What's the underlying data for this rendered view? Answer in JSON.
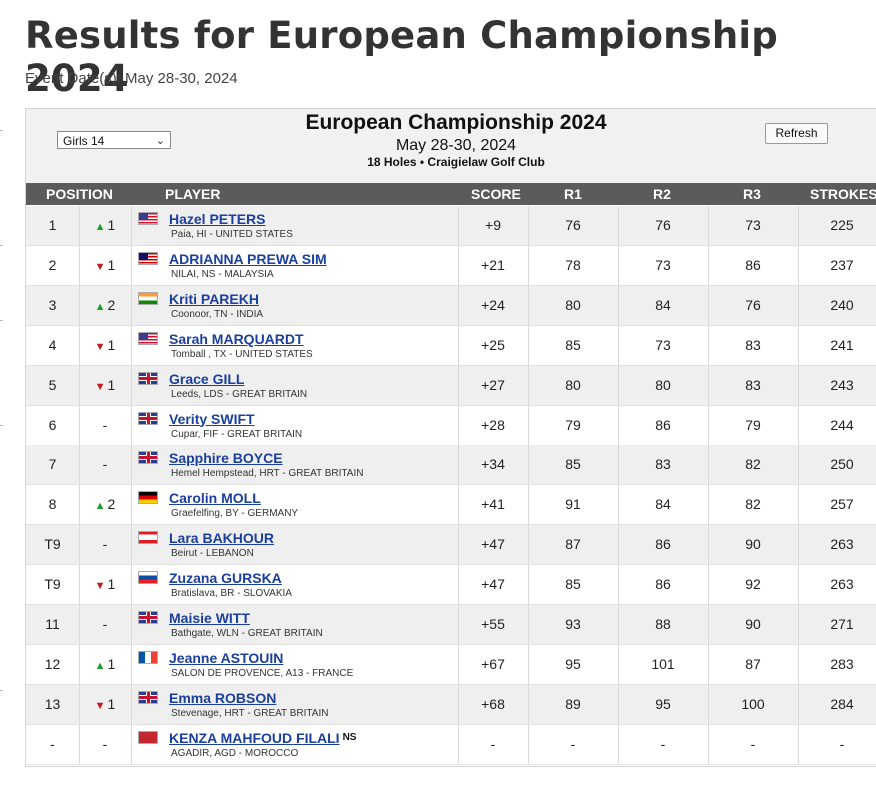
{
  "page": {
    "title": "Results for European Championship 2024",
    "event_date": "Event Date(s): May 28-30, 2024"
  },
  "board": {
    "division": "Girls 14",
    "title": "European Championship 2024",
    "dates": "May 28-30, 2024",
    "course": "18 Holes • Craigielaw Golf Club",
    "refresh_label": "Refresh"
  },
  "columns": {
    "position": "POSITION",
    "player": "PLAYER",
    "score": "SCORE",
    "r1": "R1",
    "r2": "R2",
    "r3": "R3",
    "strokes": "STROKES"
  },
  "rows": [
    {
      "pos": "1",
      "arrow": "▲",
      "move": "1",
      "dir": "up",
      "flag": "us",
      "name": "Hazel PETERS",
      "loc": "Paia, HI - UNITED STATES",
      "score": "+9",
      "r1": "76",
      "r2": "76",
      "r3": "73",
      "strokes": "225"
    },
    {
      "pos": "2",
      "arrow": "▼",
      "move": "1",
      "dir": "down",
      "flag": "my",
      "name": "ADRIANNA PREWA SIM",
      "loc": "NILAI, NS - MALAYSIA",
      "score": "+21",
      "r1": "78",
      "r2": "73",
      "r3": "86",
      "strokes": "237"
    },
    {
      "pos": "3",
      "arrow": "▲",
      "move": "2",
      "dir": "up",
      "flag": "in",
      "name": "Kriti PAREKH",
      "loc": "Coonoor, TN - INDIA",
      "score": "+24",
      "r1": "80",
      "r2": "84",
      "r3": "76",
      "strokes": "240"
    },
    {
      "pos": "4",
      "arrow": "▼",
      "move": "1",
      "dir": "down",
      "flag": "us",
      "name": "Sarah MARQUARDT",
      "loc": "Tomball , TX - UNITED STATES",
      "score": "+25",
      "r1": "85",
      "r2": "73",
      "r3": "83",
      "strokes": "241"
    },
    {
      "pos": "5",
      "arrow": "▼",
      "move": "1",
      "dir": "down",
      "flag": "gb",
      "name": "Grace GILL",
      "loc": "Leeds, LDS - GREAT BRITAIN",
      "score": "+27",
      "r1": "80",
      "r2": "80",
      "r3": "83",
      "strokes": "243"
    },
    {
      "pos": "6",
      "arrow": "",
      "move": "-",
      "dir": "none",
      "flag": "gb",
      "name": "Verity SWIFT",
      "loc": "Cupar, FIF - GREAT BRITAIN",
      "score": "+28",
      "r1": "79",
      "r2": "86",
      "r3": "79",
      "strokes": "244"
    },
    {
      "pos": "7",
      "arrow": "",
      "move": "-",
      "dir": "none",
      "flag": "gb",
      "name": "Sapphire BOYCE",
      "loc": "Hemel Hempstead, HRT - GREAT BRITAIN",
      "score": "+34",
      "r1": "85",
      "r2": "83",
      "r3": "82",
      "strokes": "250"
    },
    {
      "pos": "8",
      "arrow": "▲",
      "move": "2",
      "dir": "up",
      "flag": "de",
      "name": "Carolin MOLL",
      "loc": "Graefelfing, BY - GERMANY",
      "score": "+41",
      "r1": "91",
      "r2": "84",
      "r3": "82",
      "strokes": "257"
    },
    {
      "pos": "T9",
      "arrow": "",
      "move": "-",
      "dir": "none",
      "flag": "lb",
      "name": "Lara BAKHOUR",
      "loc": "Beirut - LEBANON",
      "score": "+47",
      "r1": "87",
      "r2": "86",
      "r3": "90",
      "strokes": "263"
    },
    {
      "pos": "T9",
      "arrow": "▼",
      "move": "1",
      "dir": "down",
      "flag": "sk",
      "name": "Zuzana GURSKA",
      "loc": "Bratislava, BR - SLOVAKIA",
      "score": "+47",
      "r1": "85",
      "r2": "86",
      "r3": "92",
      "strokes": "263"
    },
    {
      "pos": "11",
      "arrow": "",
      "move": "-",
      "dir": "none",
      "flag": "gb",
      "name": "Maisie WITT",
      "loc": "Bathgate, WLN - GREAT BRITAIN",
      "score": "+55",
      "r1": "93",
      "r2": "88",
      "r3": "90",
      "strokes": "271"
    },
    {
      "pos": "12",
      "arrow": "▲",
      "move": "1",
      "dir": "up",
      "flag": "fr",
      "name": "Jeanne ASTOUIN",
      "loc": "SALON DE PROVENCE, A13 - FRANCE",
      "score": "+67",
      "r1": "95",
      "r2": "101",
      "r3": "87",
      "strokes": "283"
    },
    {
      "pos": "13",
      "arrow": "▼",
      "move": "1",
      "dir": "down",
      "flag": "gb",
      "name": "Emma ROBSON",
      "loc": "Stevenage, HRT - GREAT BRITAIN",
      "score": "+68",
      "r1": "89",
      "r2": "95",
      "r3": "100",
      "strokes": "284"
    },
    {
      "pos": "-",
      "arrow": "",
      "move": "-",
      "dir": "none",
      "flag": "ma",
      "name": "KENZA MAHFOUD FILALI",
      "badge": "NS",
      "loc": "AGADIR, AGD - MOROCCO",
      "score": "-",
      "r1": "-",
      "r2": "-",
      "r3": "-",
      "strokes": "-"
    }
  ]
}
